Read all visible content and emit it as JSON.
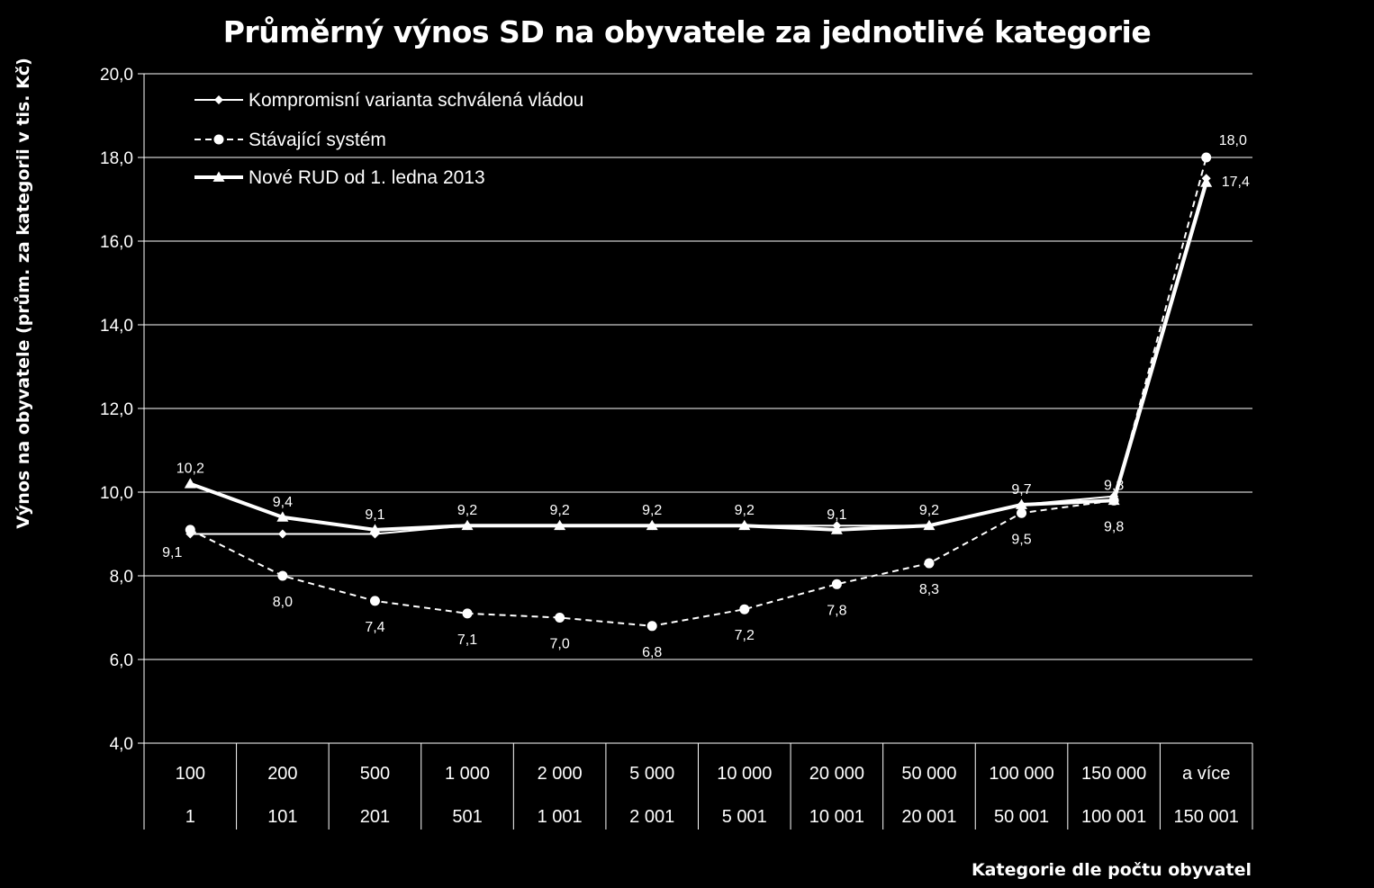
{
  "chart_data": {
    "type": "line",
    "title": "Průměrný výnos SD na obyvatele za jednotlivé kategorie",
    "ylabel": "Výnos na obyvatele (prům. za kategorii v  tis. Kč)",
    "xlabel": "Kategorie dle počtu obyvatel",
    "ylim": [
      4,
      20
    ],
    "yticks": [
      "4,0",
      "6,0",
      "8,0",
      "10,0",
      "12,0",
      "14,0",
      "16,0",
      "18,0",
      "20,0"
    ],
    "categories_upper": [
      "100",
      "200",
      "500",
      "1 000",
      "2 000",
      "5 000",
      "10 000",
      "20 000",
      "50 000",
      "100 000",
      "150 000",
      "a více"
    ],
    "categories_lower": [
      "1",
      "101",
      "201",
      "501",
      "1 001",
      "2 001",
      "5 001",
      "10 001",
      "20 001",
      "50 001",
      "100 001",
      "150 001"
    ],
    "legend_position": "top-left",
    "series": [
      {
        "name": "Kompromisní varianta schválená vládou",
        "marker": "diamond",
        "line": "solid-thin",
        "values": [
          9.0,
          9.0,
          9.0,
          9.2,
          9.2,
          9.2,
          9.2,
          9.2,
          9.2,
          9.7,
          9.9,
          17.5
        ]
      },
      {
        "name": "Stávající systém",
        "marker": "circle",
        "line": "dashed",
        "values": [
          9.1,
          8.0,
          7.4,
          7.1,
          7.0,
          6.8,
          7.2,
          7.8,
          8.3,
          9.5,
          9.8,
          18.0
        ],
        "labels": [
          "9,1",
          "8,0",
          "7,4",
          "7,1",
          "7,0",
          "6,8",
          "7,2",
          "7,8",
          "8,3",
          "9,5",
          "9,8",
          "18,0"
        ]
      },
      {
        "name": "Nové RUD od 1. ledna 2013",
        "marker": "triangle",
        "line": "solid-thick",
        "values": [
          10.2,
          9.4,
          9.1,
          9.2,
          9.2,
          9.2,
          9.2,
          9.1,
          9.2,
          9.7,
          9.8,
          17.4
        ],
        "labels": [
          "10,2",
          "9,4",
          "9,1",
          "9,2",
          "9,2",
          "9,2",
          "9,2",
          "9,1",
          "9,2",
          "9,7",
          "9,8",
          "17,4"
        ]
      }
    ],
    "colors": {
      "background": "#000000",
      "foreground": "#ffffff"
    }
  }
}
